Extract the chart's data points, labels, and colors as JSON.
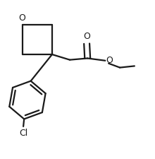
{
  "background": "#ffffff",
  "line_color": "#1a1a1a",
  "lw": 1.6,
  "fig_width": 2.2,
  "fig_height": 2.26,
  "dpi": 100,
  "xlim": [
    0.0,
    1.0
  ],
  "ylim": [
    0.0,
    1.0
  ],
  "O_label_fontsize": 9,
  "Cl_label_fontsize": 9
}
